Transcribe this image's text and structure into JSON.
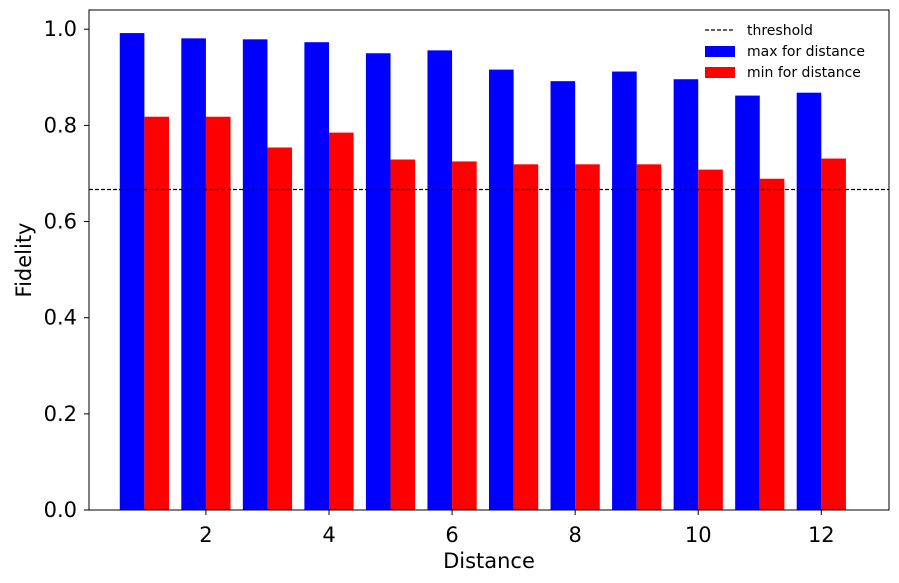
{
  "chart_data": {
    "type": "bar",
    "x": [
      1,
      2,
      3,
      4,
      5,
      6,
      7,
      8,
      9,
      10,
      11,
      12
    ],
    "series": [
      {
        "name": "max for distance",
        "color": "#0000ff",
        "values": [
          0.992,
          0.981,
          0.979,
          0.973,
          0.95,
          0.956,
          0.916,
          0.892,
          0.912,
          0.896,
          0.862,
          0.868
        ]
      },
      {
        "name": "min for distance",
        "color": "#ff0000",
        "values": [
          0.818,
          0.818,
          0.754,
          0.785,
          0.729,
          0.725,
          0.719,
          0.719,
          0.719,
          0.708,
          0.689,
          0.731
        ]
      }
    ],
    "threshold": {
      "name": "threshold",
      "value": 0.6667,
      "color": "#000000",
      "style": "dashed"
    },
    "xlabel": "Distance",
    "ylabel": "Fidelity",
    "xticks": [
      2,
      4,
      6,
      8,
      10,
      12
    ],
    "yticks": [
      0.0,
      0.2,
      0.4,
      0.6,
      0.8,
      1.0
    ],
    "xlim": [
      0.1,
      13.1
    ],
    "ylim": [
      0,
      1.04
    ],
    "grid": false,
    "legend": "top-right"
  }
}
